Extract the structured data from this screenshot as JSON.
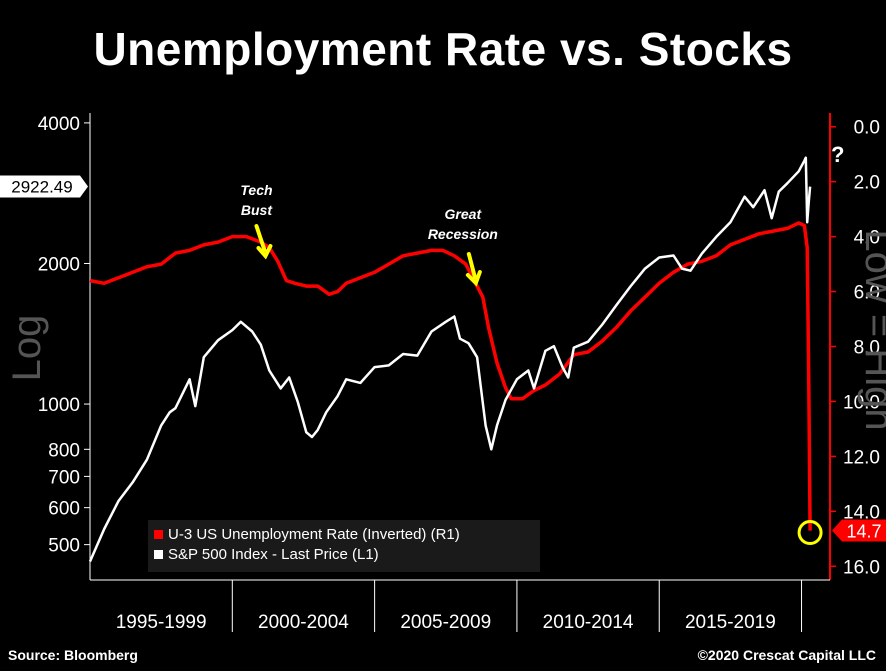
{
  "title": "Unemployment Rate vs. Stocks",
  "source": "Source: Bloomberg",
  "copyright": "©2020 Crescat Capital LLC",
  "chart_data": {
    "type": "line",
    "left_axis": {
      "label": "Log",
      "scale": "log",
      "ticks": [
        4000,
        2000,
        1000,
        800,
        700,
        600,
        500
      ],
      "ylim": [
        420,
        4200
      ],
      "current_value_label": "2922.49",
      "current_value": 2922.49
    },
    "right_axis": {
      "label": "Low = High",
      "inverted": true,
      "ticks": [
        "0.0",
        "2.0",
        "4.0",
        "6.0",
        "8.0",
        "10.0",
        "12.0",
        "14.0",
        "16.0"
      ],
      "ylim": [
        -0.5,
        16.5
      ],
      "current_value_label": "14.7",
      "current_value": 14.7
    },
    "x_periods": [
      "1995-1999",
      "2000-2004",
      "2005-2009",
      "2010-2014",
      "2015-2019"
    ],
    "xlim": [
      1995.0,
      2021.0
    ],
    "legend": [
      {
        "name": "U-3 US Unemployment Rate (Inverted) (R1)",
        "color": "#ff0000"
      },
      {
        "name": "S&P 500 Index - Last Price (L1)",
        "color": "#ffffff"
      }
    ],
    "legend_position": "bottom-left",
    "annotations": [
      {
        "text": "Tech Bust",
        "x": 2001.2,
        "arrow_color": "#ffff00"
      },
      {
        "text": "Great Recession",
        "x": 2008.1,
        "arrow_color": "#ffff00"
      },
      {
        "text": "?",
        "x": 2020.5
      }
    ],
    "highlight_circle": {
      "x": 2020.3,
      "y": 14.7,
      "color": "#ffff00"
    },
    "series": [
      {
        "name": "S&P 500 Index - Last Price",
        "axis": "left",
        "color": "#ffffff",
        "x": [
          1995.0,
          1995.5,
          1996.0,
          1996.5,
          1997.0,
          1997.5,
          1997.8,
          1998.0,
          1998.5,
          1998.7,
          1999.0,
          1999.5,
          2000.0,
          2000.3,
          2000.7,
          2001.0,
          2001.3,
          2001.7,
          2002.0,
          2002.3,
          2002.6,
          2002.8,
          2003.0,
          2003.3,
          2003.7,
          2004.0,
          2004.5,
          2005.0,
          2005.5,
          2006.0,
          2006.5,
          2007.0,
          2007.5,
          2007.8,
          2008.0,
          2008.3,
          2008.6,
          2008.9,
          2009.1,
          2009.3,
          2009.6,
          2010.0,
          2010.4,
          2010.6,
          2011.0,
          2011.3,
          2011.6,
          2011.8,
          2012.0,
          2012.5,
          2013.0,
          2013.5,
          2014.0,
          2014.5,
          2015.0,
          2015.5,
          2015.8,
          2016.1,
          2016.5,
          2017.0,
          2017.5,
          2018.0,
          2018.3,
          2018.7,
          2018.95,
          2019.2,
          2019.5,
          2019.9,
          2020.1,
          2020.15,
          2020.2,
          2020.25,
          2020.3
        ],
        "values": [
          460,
          540,
          620,
          680,
          760,
          900,
          960,
          980,
          1130,
          990,
          1260,
          1370,
          1440,
          1500,
          1430,
          1340,
          1180,
          1080,
          1140,
          1010,
          870,
          850,
          880,
          960,
          1040,
          1130,
          1110,
          1200,
          1210,
          1280,
          1270,
          1430,
          1500,
          1540,
          1380,
          1350,
          1260,
          900,
          800,
          900,
          1020,
          1130,
          1180,
          1080,
          1300,
          1330,
          1200,
          1140,
          1320,
          1360,
          1480,
          1630,
          1790,
          1950,
          2060,
          2080,
          1950,
          1930,
          2100,
          2280,
          2450,
          2780,
          2640,
          2870,
          2500,
          2850,
          2970,
          3150,
          3320,
          3370,
          2450,
          2700,
          2922.49
        ]
      },
      {
        "name": "U-3 US Unemployment Rate (Inverted)",
        "axis": "right",
        "color": "#ff0000",
        "x": [
          1995.0,
          1995.5,
          1996.0,
          1996.5,
          1997.0,
          1997.5,
          1998.0,
          1998.5,
          1999.0,
          1999.5,
          2000.0,
          2000.5,
          2001.0,
          2001.3,
          2001.6,
          2001.9,
          2002.2,
          2002.6,
          2003.0,
          2003.4,
          2003.7,
          2004.0,
          2004.5,
          2005.0,
          2005.5,
          2006.0,
          2006.5,
          2007.0,
          2007.4,
          2007.8,
          2008.2,
          2008.5,
          2008.8,
          2009.0,
          2009.3,
          2009.6,
          2009.8,
          2010.2,
          2010.6,
          2011.0,
          2011.5,
          2012.0,
          2012.5,
          2013.0,
          2013.5,
          2014.0,
          2014.5,
          2015.0,
          2015.5,
          2016.0,
          2016.5,
          2017.0,
          2017.5,
          2018.0,
          2018.5,
          2019.0,
          2019.5,
          2019.9,
          2020.1,
          2020.2,
          2020.25,
          2020.3
        ],
        "values": [
          5.6,
          5.7,
          5.5,
          5.3,
          5.1,
          5.0,
          4.6,
          4.5,
          4.3,
          4.2,
          4.0,
          4.0,
          4.2,
          4.4,
          4.9,
          5.6,
          5.7,
          5.8,
          5.8,
          6.1,
          6.0,
          5.7,
          5.5,
          5.3,
          5.0,
          4.7,
          4.6,
          4.5,
          4.5,
          4.7,
          5.0,
          5.6,
          6.2,
          7.3,
          8.6,
          9.5,
          9.9,
          9.9,
          9.6,
          9.4,
          9.0,
          8.3,
          8.2,
          7.8,
          7.3,
          6.7,
          6.2,
          5.7,
          5.3,
          5.0,
          4.9,
          4.7,
          4.3,
          4.1,
          3.9,
          3.8,
          3.7,
          3.5,
          3.6,
          4.4,
          9.0,
          14.7
        ]
      }
    ]
  }
}
